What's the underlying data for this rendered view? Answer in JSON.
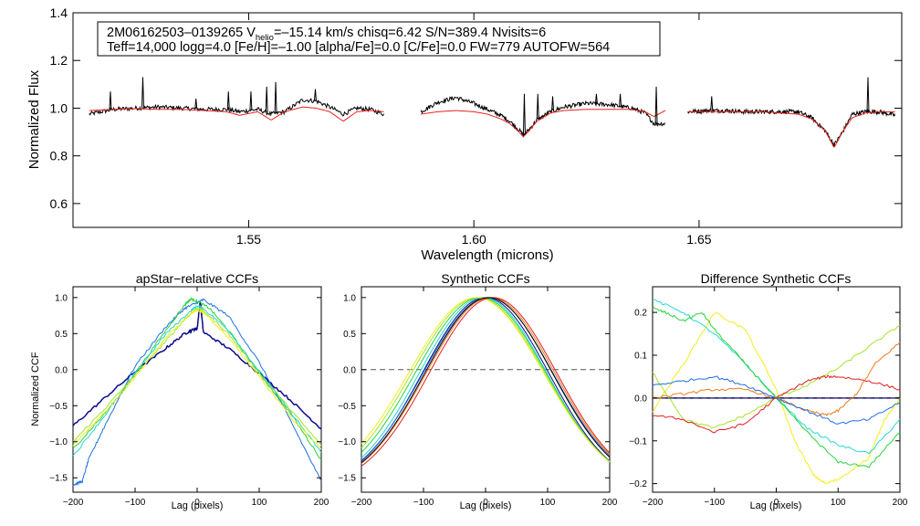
{
  "header": {
    "line1": "2M06162503–0139265  V",
    "line1_sub": "helio",
    "line1_rest": "=–15.14 km/s  chisq=6.42  S/N=389.4  Nvisits=6",
    "line2": "Teff=14,000 logg=4.0 [Fe/H]=–1.00 [alpha/Fe]=0.0 [C/Fe]=0.0 FW=779 AUTOFW=564"
  },
  "colors": {
    "observed": "#000000",
    "model": "#e8231e",
    "dashed": "#555555",
    "navy": "#0a0a8c",
    "blue": "#1f6fe0",
    "cyan": "#25d6d6",
    "green": "#27d43a",
    "lime": "#a6e42a",
    "yellow": "#f2ee1a",
    "orange": "#f07a1a",
    "red": "#e01e1e"
  },
  "chart_data": [
    {
      "type": "line",
      "name": "spectrum",
      "title": "",
      "xlabel": "Wavelength (microns)",
      "ylabel": "Normalized Flux",
      "xlim": [
        1.511,
        1.695
      ],
      "ylim": [
        0.5,
        1.4
      ],
      "xticks": [
        1.55,
        1.6,
        1.65
      ],
      "xtick_labels": [
        "1.55",
        "1.60",
        "1.65"
      ],
      "yticks": [
        0.6,
        0.8,
        1.0,
        1.2,
        1.4
      ],
      "ytick_labels": [
        "0.6",
        "0.8",
        "1.0",
        "1.2",
        "1.4"
      ],
      "chips": [
        {
          "x": [
            1.5146,
            1.52,
            1.525,
            1.53,
            1.535,
            1.54,
            1.545,
            1.548,
            1.552,
            1.555,
            1.558,
            1.562,
            1.565,
            1.568,
            1.571,
            1.574,
            1.577,
            1.58
          ],
          "observed": [
            0.975,
            0.995,
            1.0,
            1.005,
            1.0,
            0.995,
            0.995,
            0.985,
            0.995,
            0.975,
            0.985,
            1.035,
            1.03,
            1.005,
            0.975,
            1.0,
            0.995,
            0.975
          ],
          "model": [
            0.99,
            0.995,
            0.998,
            0.995,
            0.995,
            0.99,
            0.985,
            0.97,
            0.985,
            0.95,
            0.985,
            1.005,
            1.0,
            0.985,
            0.945,
            0.985,
            0.99,
            0.985
          ]
        },
        {
          "x": [
            1.5882,
            1.592,
            1.596,
            1.6,
            1.603,
            1.606,
            1.608,
            1.61,
            1.611,
            1.612,
            1.614,
            1.617,
            1.62,
            1.625,
            1.63,
            1.635,
            1.638,
            1.64,
            1.6425
          ],
          "observed": [
            0.985,
            1.025,
            1.045,
            1.02,
            0.995,
            0.97,
            0.945,
            0.91,
            0.885,
            0.905,
            0.95,
            0.985,
            1.005,
            1.02,
            1.015,
            1.0,
            0.98,
            0.935,
            0.935
          ],
          "model": [
            0.975,
            0.985,
            0.99,
            0.985,
            0.975,
            0.955,
            0.935,
            0.9,
            0.88,
            0.9,
            0.945,
            0.98,
            0.99,
            0.995,
            0.995,
            0.995,
            0.985,
            0.965,
            0.99
          ]
        },
        {
          "x": [
            1.6475,
            1.652,
            1.656,
            1.66,
            1.664,
            1.668,
            1.672,
            1.675,
            1.678,
            1.68,
            1.682,
            1.684,
            1.687,
            1.69,
            1.6935
          ],
          "observed": [
            0.985,
            0.99,
            0.99,
            0.985,
            0.985,
            0.985,
            0.985,
            0.96,
            0.905,
            0.845,
            0.905,
            0.975,
            0.985,
            0.985,
            0.97
          ],
          "model": [
            0.985,
            0.985,
            0.985,
            0.985,
            0.985,
            0.98,
            0.975,
            0.955,
            0.905,
            0.835,
            0.905,
            0.96,
            0.98,
            0.985,
            0.985
          ]
        }
      ],
      "emission_spikes": [
        {
          "x": 1.5193,
          "y": 1.07
        },
        {
          "x": 1.5265,
          "y": 1.13
        },
        {
          "x": 1.5383,
          "y": 1.04
        },
        {
          "x": 1.5455,
          "y": 1.07
        },
        {
          "x": 1.5505,
          "y": 1.07
        },
        {
          "x": 1.554,
          "y": 1.09
        },
        {
          "x": 1.556,
          "y": 1.11
        },
        {
          "x": 1.5648,
          "y": 1.08
        },
        {
          "x": 1.6112,
          "y": 1.06
        },
        {
          "x": 1.6142,
          "y": 1.06
        },
        {
          "x": 1.6175,
          "y": 1.05
        },
        {
          "x": 1.6272,
          "y": 1.06
        },
        {
          "x": 1.6325,
          "y": 1.06
        },
        {
          "x": 1.6405,
          "y": 1.09
        },
        {
          "x": 1.6528,
          "y": 1.05
        },
        {
          "x": 1.6875,
          "y": 1.13
        }
      ]
    },
    {
      "type": "line",
      "name": "apstar_ccf",
      "title": "apStar−relative CCFs",
      "xlabel": "Lag (pixels)",
      "ylabel": "Normalized CCF",
      "xlim": [
        -200,
        200
      ],
      "ylim": [
        -1.7,
        1.15
      ],
      "xticks": [
        -200,
        -100,
        0,
        100,
        200
      ],
      "xtick_labels": [
        "−200",
        "−100",
        "0",
        "100",
        "200"
      ],
      "yticks": [
        -1.5,
        -1.0,
        -0.5,
        0.0,
        0.5,
        1.0
      ],
      "ytick_labels": [
        "−1.5",
        "−1.0",
        "−0.5",
        "0.0",
        "0.5",
        "1.0"
      ],
      "series": [
        {
          "name": "navy",
          "color": "navy",
          "x": [
            -200,
            -150,
            -100,
            -50,
            -20,
            -5,
            0,
            5,
            10,
            50,
            100,
            150,
            200
          ],
          "y": [
            -0.78,
            -0.4,
            -0.03,
            0.3,
            0.5,
            0.56,
            0.57,
            0.95,
            0.52,
            0.3,
            -0.05,
            -0.42,
            -0.82
          ]
        },
        {
          "name": "blue",
          "color": "blue",
          "x": [
            -200,
            -185,
            -175,
            -150,
            -100,
            -50,
            -20,
            0,
            10,
            50,
            100,
            150,
            200
          ],
          "y": [
            -1.6,
            -1.55,
            -1.25,
            -0.8,
            0.05,
            0.6,
            0.85,
            0.93,
            0.97,
            0.75,
            0.1,
            -0.7,
            -1.55
          ]
        },
        {
          "name": "green",
          "color": "green",
          "x": [
            -200,
            -150,
            -120,
            -100,
            -50,
            -20,
            -10,
            0,
            20,
            50,
            100,
            150,
            200
          ],
          "y": [
            -1.1,
            -0.62,
            -0.3,
            -0.05,
            0.55,
            0.9,
            0.98,
            0.95,
            0.85,
            0.55,
            -0.05,
            -0.6,
            -1.25
          ]
        },
        {
          "name": "cyan",
          "color": "cyan",
          "x": [
            -200,
            -150,
            -100,
            -50,
            -10,
            0,
            10,
            50,
            100,
            150,
            200
          ],
          "y": [
            -1.2,
            -0.65,
            -0.05,
            0.5,
            0.82,
            0.88,
            0.85,
            0.55,
            -0.02,
            -0.58,
            -1.15
          ]
        },
        {
          "name": "lime",
          "color": "lime",
          "x": [
            -200,
            -150,
            -100,
            -50,
            -20,
            0,
            10,
            50,
            100,
            150,
            200
          ],
          "y": [
            -1.0,
            -0.55,
            -0.08,
            0.4,
            0.7,
            0.85,
            0.82,
            0.5,
            -0.05,
            -0.55,
            -1.05
          ]
        },
        {
          "name": "yellow",
          "color": "yellow",
          "x": [
            -200,
            -150,
            -100,
            -50,
            -10,
            0,
            10,
            50,
            100,
            150,
            200
          ],
          "y": [
            -1.05,
            -0.6,
            -0.1,
            0.45,
            0.78,
            0.82,
            0.8,
            0.45,
            -0.1,
            -0.65,
            -1.1
          ]
        }
      ]
    },
    {
      "type": "line",
      "name": "synthetic_ccf",
      "title": "Synthetic CCFs",
      "xlabel": "Lag (pixels)",
      "ylabel": "",
      "xlim": [
        -200,
        200
      ],
      "ylim": [
        -1.7,
        1.15
      ],
      "xticks": [
        -200,
        -100,
        0,
        100,
        200
      ],
      "xtick_labels": [
        "−200",
        "−100",
        "0",
        "100",
        "200"
      ],
      "yticks": [
        -1.5,
        -1.0,
        -0.5,
        0.0,
        0.5,
        1.0
      ],
      "ytick_labels": [
        "−1.5",
        "−1.0",
        "−0.5",
        "0.0",
        "0.5",
        "1.0"
      ],
      "reference_line": 0.0,
      "series": [
        {
          "name": "navy",
          "color": "navy",
          "center": 0,
          "width": 115
        },
        {
          "name": "blue",
          "color": "blue",
          "center": 4,
          "width": 118
        },
        {
          "name": "cyan",
          "color": "cyan",
          "center": -4,
          "width": 116
        },
        {
          "name": "green",
          "color": "green",
          "center": -8,
          "width": 119
        },
        {
          "name": "lime",
          "color": "lime",
          "center": -12,
          "width": 121
        },
        {
          "name": "yellow",
          "color": "yellow",
          "center": -15,
          "width": 123
        },
        {
          "name": "orange",
          "color": "orange",
          "center": 8,
          "width": 117
        },
        {
          "name": "red",
          "color": "red",
          "center": 12,
          "width": 116
        },
        {
          "name": "black",
          "color": "observed",
          "center": 5,
          "width": 116
        }
      ]
    },
    {
      "type": "line",
      "name": "difference_ccf",
      "title": "Difference Synthetic CCFs",
      "xlabel": "Lag (pixels)",
      "ylabel": "",
      "xlim": [
        -200,
        200
      ],
      "ylim": [
        -0.22,
        0.26
      ],
      "xticks": [
        -200,
        -100,
        0,
        100,
        200
      ],
      "xtick_labels": [
        "−200",
        "−100",
        "0",
        "100",
        "200"
      ],
      "yticks": [
        -0.2,
        -0.1,
        0.0,
        0.1,
        0.2
      ],
      "ytick_labels": [
        "−0.2",
        "−0.1",
        "0.0",
        "0.1",
        "0.2"
      ],
      "series": [
        {
          "name": "navy",
          "color": "navy",
          "x": [
            -200,
            200
          ],
          "y": [
            0.0,
            0.0
          ]
        },
        {
          "name": "yellow",
          "color": "yellow",
          "x": [
            -200,
            -150,
            -100,
            -50,
            0,
            30,
            60,
            80,
            100,
            150,
            175,
            200
          ],
          "y": [
            -0.03,
            0.08,
            0.2,
            0.16,
            0.02,
            -0.1,
            -0.18,
            -0.2,
            -0.19,
            -0.14,
            -0.05,
            0.0
          ]
        },
        {
          "name": "cyan",
          "color": "cyan",
          "x": [
            -200,
            -150,
            -100,
            -50,
            0,
            50,
            100,
            150,
            200
          ],
          "y": [
            0.23,
            0.2,
            0.15,
            0.08,
            0.0,
            -0.07,
            -0.11,
            -0.13,
            -0.05
          ]
        },
        {
          "name": "green",
          "color": "green",
          "x": [
            -200,
            -180,
            -150,
            -120,
            -100,
            -50,
            0,
            50,
            100,
            150,
            200
          ],
          "y": [
            0.21,
            0.2,
            0.18,
            0.2,
            0.16,
            0.08,
            0.0,
            -0.08,
            -0.15,
            -0.16,
            -0.08
          ]
        },
        {
          "name": "lime",
          "color": "lime",
          "x": [
            -200,
            -150,
            -100,
            -50,
            0,
            50,
            100,
            150,
            200
          ],
          "y": [
            0.06,
            -0.05,
            -0.07,
            -0.04,
            0.0,
            0.03,
            0.07,
            0.12,
            0.17
          ]
        },
        {
          "name": "red",
          "color": "red",
          "x": [
            -200,
            -150,
            -100,
            -50,
            0,
            50,
            80,
            100,
            150,
            200
          ],
          "y": [
            -0.04,
            -0.05,
            -0.08,
            -0.06,
            0.0,
            0.04,
            0.05,
            0.05,
            0.04,
            0.02
          ]
        },
        {
          "name": "orange",
          "color": "orange",
          "x": [
            -200,
            -150,
            -100,
            -50,
            0,
            50,
            80,
            100,
            130,
            160,
            200
          ],
          "y": [
            0.0,
            0.01,
            0.02,
            0.02,
            0.0,
            -0.03,
            -0.04,
            -0.03,
            0.01,
            0.08,
            0.13
          ]
        },
        {
          "name": "blue",
          "color": "blue",
          "x": [
            -200,
            -150,
            -100,
            -50,
            0,
            50,
            100,
            150,
            200
          ],
          "y": [
            0.03,
            0.04,
            0.05,
            0.03,
            0.0,
            -0.03,
            -0.06,
            -0.05,
            -0.01
          ]
        }
      ]
    }
  ]
}
